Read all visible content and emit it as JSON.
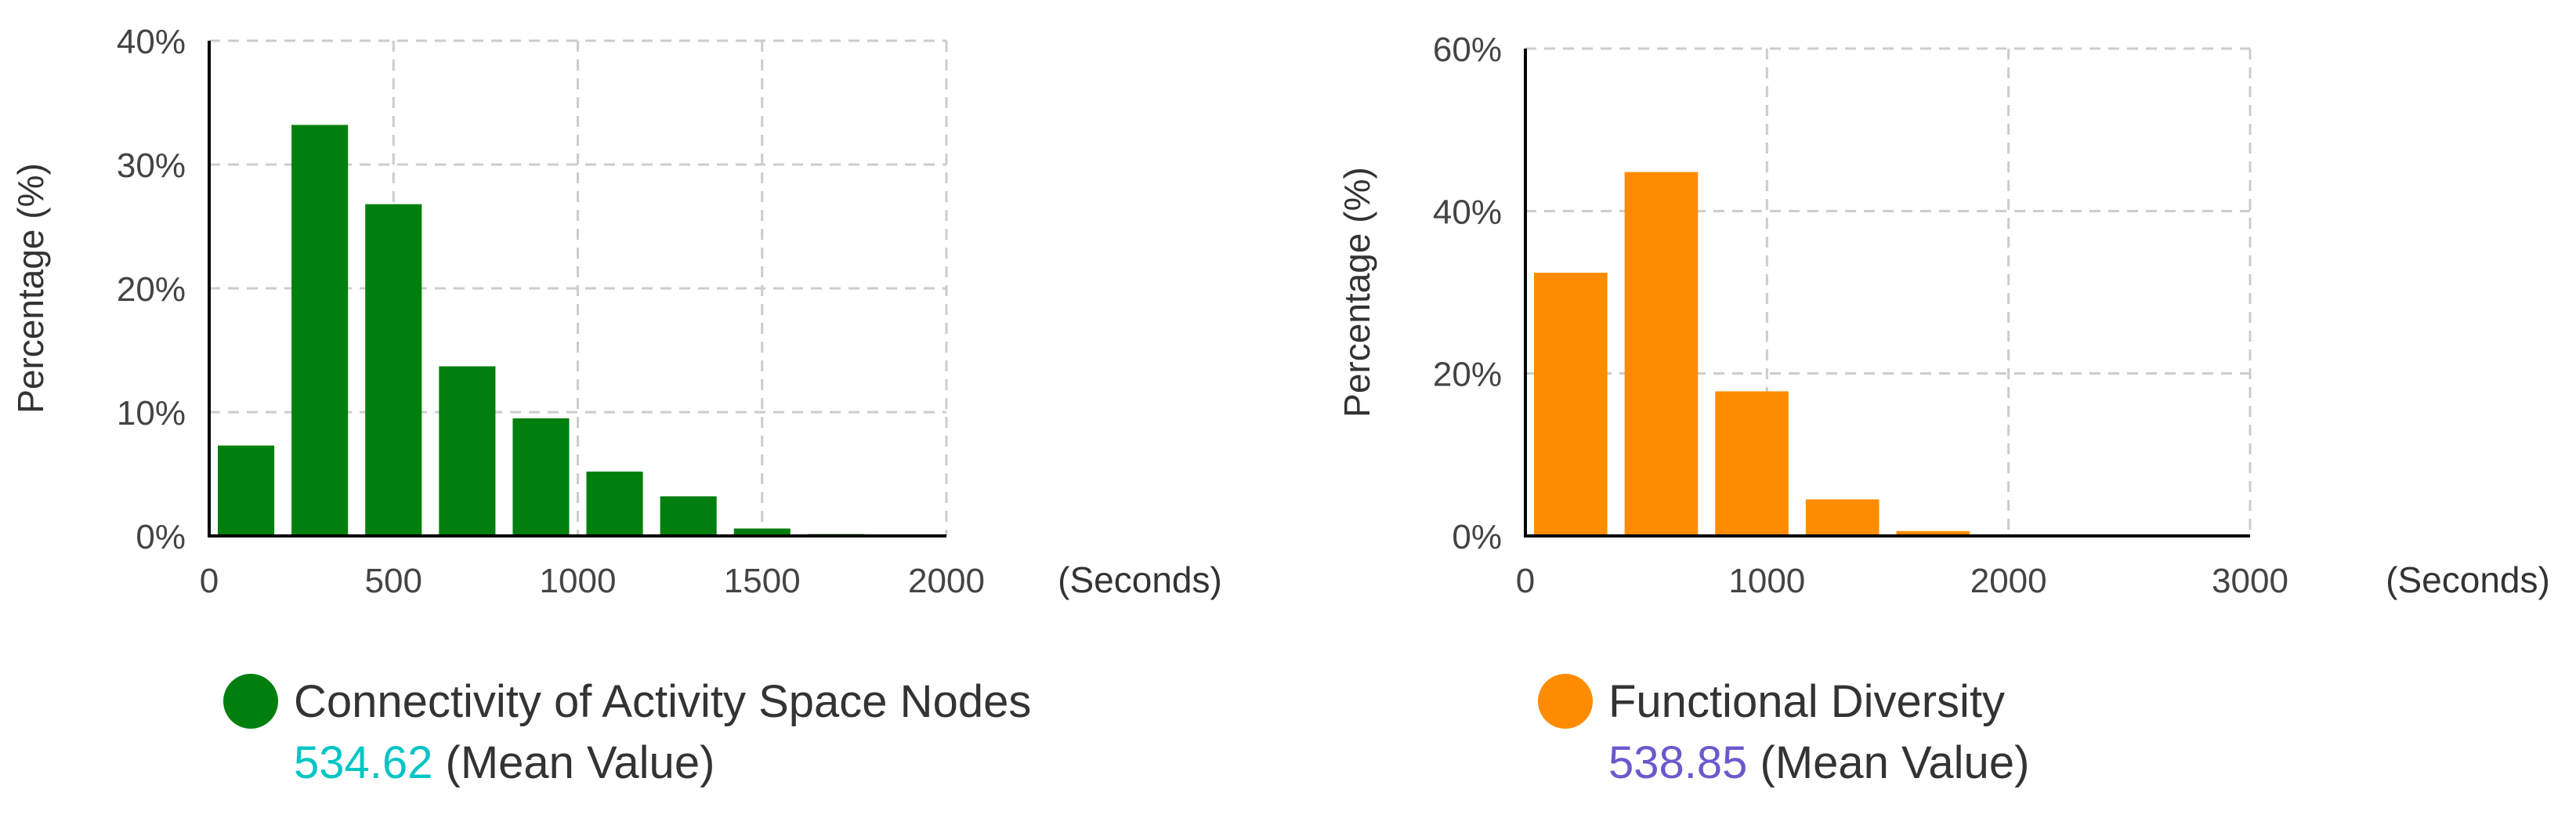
{
  "chart_data": [
    {
      "type": "bar",
      "series": [
        {
          "name": "Connectivity of Activity Space Nodes",
          "bins": [
            {
              "x": 100,
              "value": 7.3
            },
            {
              "x": 300,
              "value": 33.2
            },
            {
              "x": 500,
              "value": 26.8
            },
            {
              "x": 700,
              "value": 13.7
            },
            {
              "x": 900,
              "value": 9.5
            },
            {
              "x": 1100,
              "value": 5.2
            },
            {
              "x": 1300,
              "value": 3.2
            },
            {
              "x": 1500,
              "value": 0.6
            },
            {
              "x": 1700,
              "value": 0.15
            },
            {
              "x": 1900,
              "value": 0.1
            }
          ],
          "bin_width": 200
        }
      ],
      "xlabel": "(Seconds)",
      "ylabel": "Percentage (%)",
      "xlim": [
        0,
        2000
      ],
      "ylim": [
        0,
        40
      ],
      "x_ticks": [
        "0",
        "500",
        "1000",
        "1500",
        "2000"
      ],
      "y_ticks": [
        "0%",
        "10%",
        "20%",
        "30%",
        "40%"
      ],
      "grid": true,
      "color": "#007F0E",
      "mean_value": "534.62",
      "mean_color": "#00C5C5",
      "mean_suffix": " (Mean Value)"
    },
    {
      "type": "bar",
      "series": [
        {
          "name": "Functional Diversity",
          "bins": [
            {
              "x": 187.5,
              "value": 32.4
            },
            {
              "x": 562.5,
              "value": 44.8
            },
            {
              "x": 937.5,
              "value": 17.8
            },
            {
              "x": 1312.5,
              "value": 4.5
            },
            {
              "x": 1687.5,
              "value": 0.6
            }
          ],
          "bin_width": 375
        }
      ],
      "xlabel": "(Seconds)",
      "ylabel": "Percentage (%)",
      "xlim": [
        0,
        3000
      ],
      "ylim": [
        0,
        60
      ],
      "x_ticks": [
        "0",
        "1000",
        "2000",
        "3000"
      ],
      "y_ticks": [
        "0%",
        "20%",
        "40%",
        "60%"
      ],
      "grid": true,
      "color": "#FF8C00",
      "mean_value": "538.85",
      "mean_color": "#6A5ACD",
      "mean_suffix": " (Mean Value)"
    }
  ]
}
